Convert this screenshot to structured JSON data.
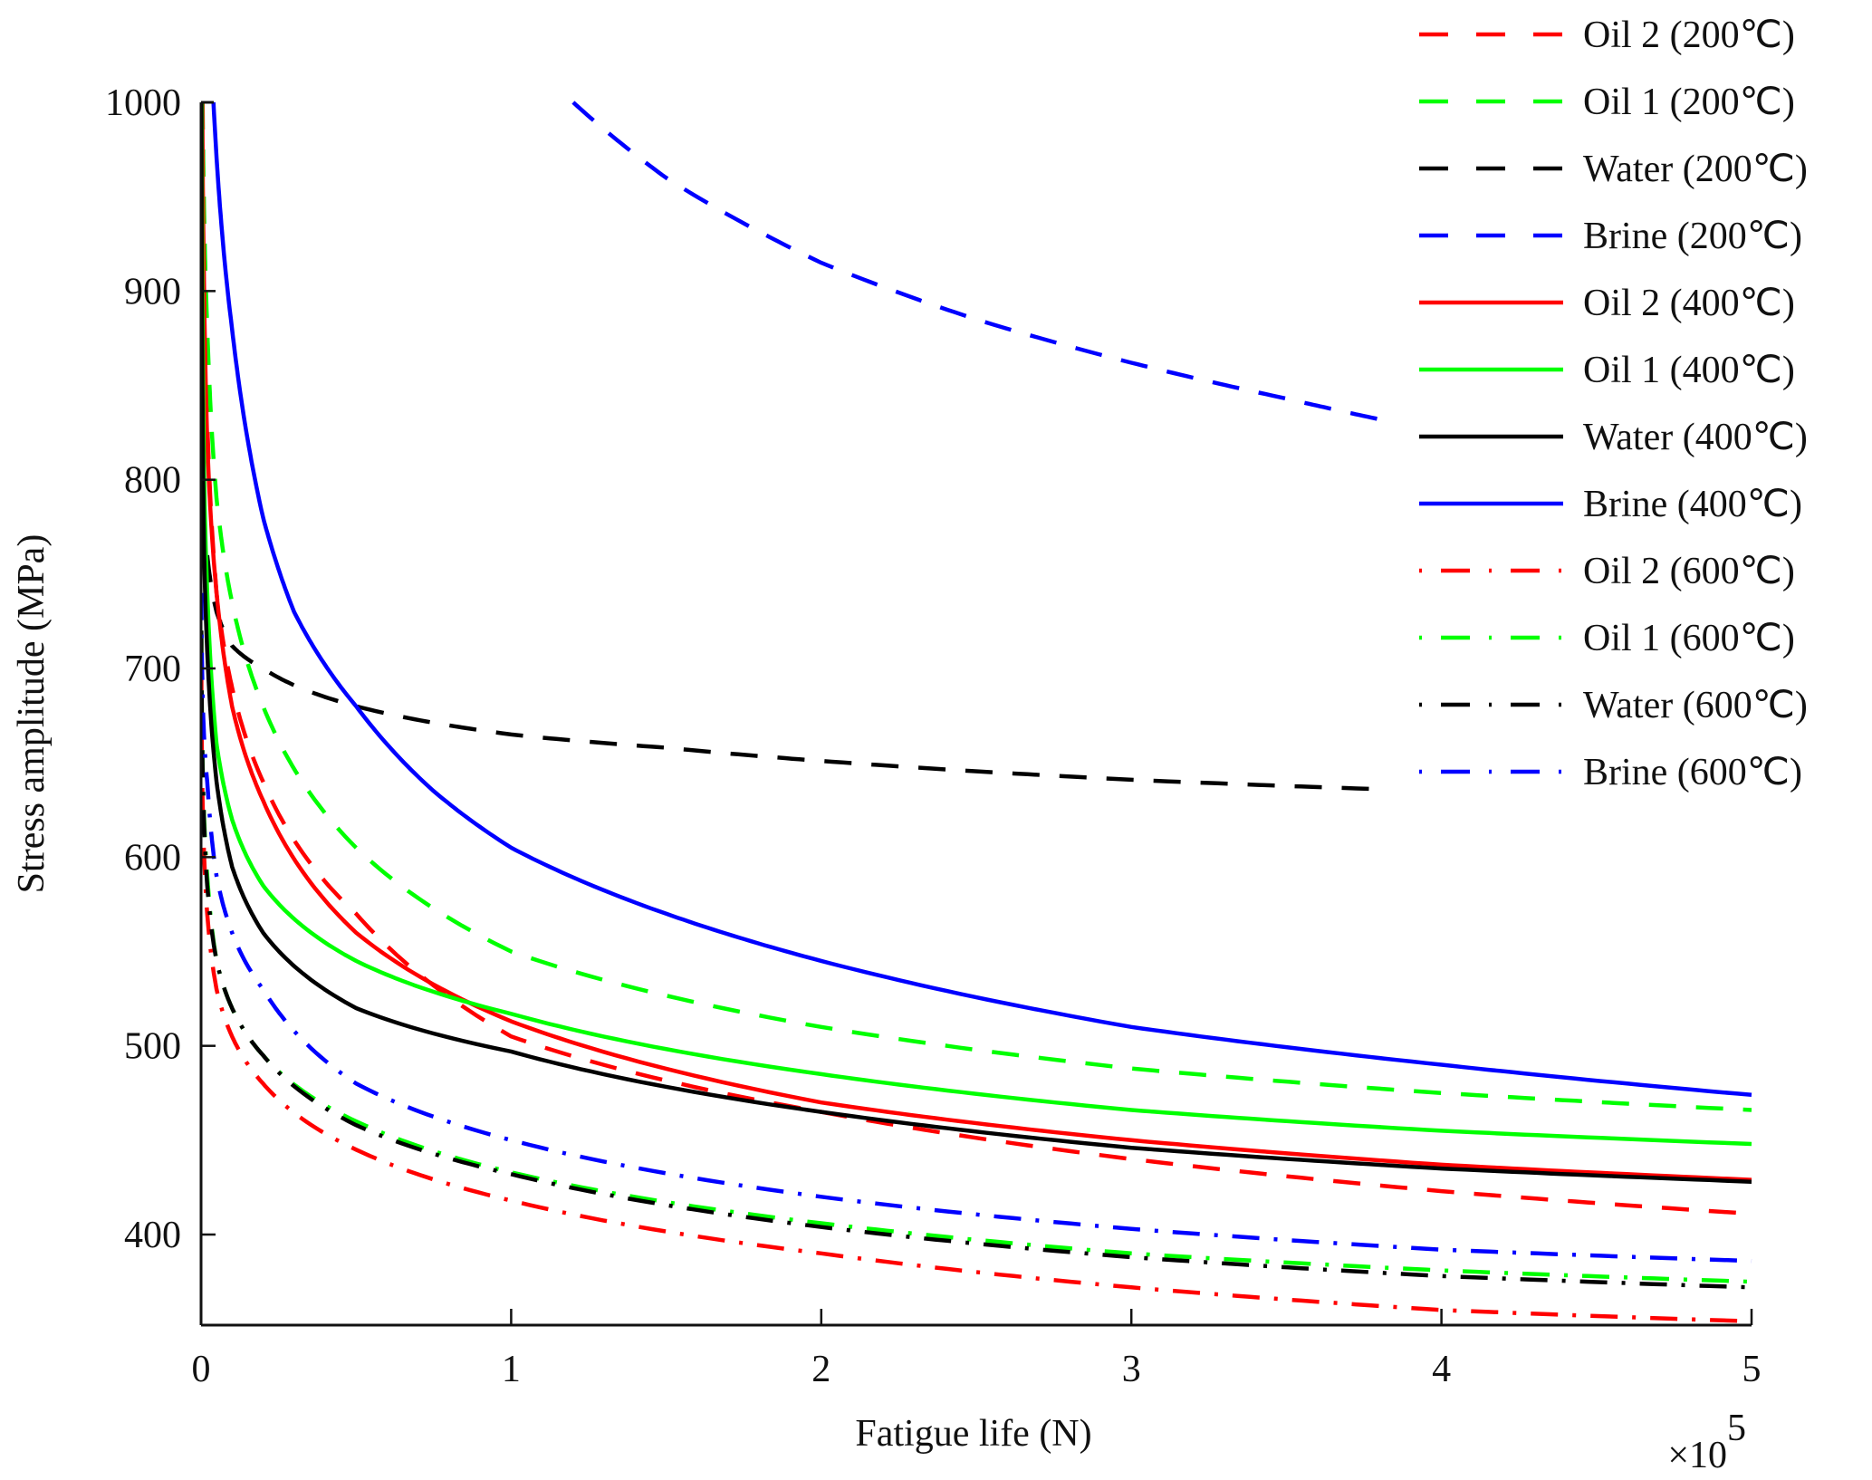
{
  "chart_data": {
    "type": "line",
    "title": "",
    "xlabel": "Fatigue life (N)",
    "ylabel": "Stress amplitude (MPa)",
    "x_multiplier_label": "×10",
    "x_multiplier_exponent": "5",
    "xlim": [
      0,
      5
    ],
    "ylim": [
      352,
      1000
    ],
    "x_ticks": [
      "0",
      "1",
      "2",
      "3",
      "4",
      "5"
    ],
    "x_tick_values": [
      0,
      1,
      2,
      3,
      4,
      5
    ],
    "y_ticks": [
      "400",
      "500",
      "600",
      "700",
      "800",
      "900",
      "1000"
    ],
    "y_tick_values": [
      400,
      500,
      600,
      700,
      800,
      900,
      1000
    ],
    "grid": false,
    "legend_position": "top-right",
    "x_units_note": "x values in units of 10^5 cycles",
    "series": [
      {
        "name": "Oil 2 (200",
        "unit": "℃",
        "color": "#ff0000",
        "style": "dashed",
        "x": [
          0.003,
          0.02,
          0.05,
          0.1,
          0.2,
          0.5,
          1,
          2,
          3,
          4,
          5
        ],
        "y": [
          1000,
          830,
          740,
          690,
          640,
          570,
          505,
          465,
          440,
          423,
          411
        ]
      },
      {
        "name": "Oil 1 (200",
        "unit": "℃",
        "color": "#00ff00",
        "style": "dashed",
        "x": [
          0.005,
          0.02,
          0.05,
          0.1,
          0.2,
          0.5,
          1,
          2,
          3,
          4,
          5
        ],
        "y": [
          1000,
          880,
          790,
          735,
          680,
          605,
          550,
          510,
          488,
          475,
          466
        ]
      },
      {
        "name": "Water (200",
        "unit": "℃",
        "color": "#000000",
        "style": "dashed",
        "x": [
          0.02,
          0.05,
          0.1,
          0.2,
          0.5,
          1,
          1.5,
          2,
          3,
          3.8
        ],
        "y": [
          760,
          730,
          712,
          700,
          680,
          665,
          658,
          651,
          641,
          636
        ]
      },
      {
        "name": "Brine (200",
        "unit": "℃",
        "color": "#0000ff",
        "style": "dashed",
        "x": [
          1.2,
          1.5,
          2.0,
          2.5,
          3.0,
          3.5,
          3.8
        ],
        "y": [
          1000,
          960,
          915,
          885,
          862,
          843,
          832
        ]
      },
      {
        "name": "Oil 2 (400",
        "unit": "℃",
        "color": "#ff0000",
        "style": "solid",
        "x": [
          0.004,
          0.02,
          0.05,
          0.1,
          0.2,
          0.5,
          1,
          2,
          3,
          4,
          5
        ],
        "y": [
          1000,
          820,
          740,
          680,
          630,
          560,
          513,
          470,
          450,
          437,
          429
        ]
      },
      {
        "name": "Oil 1 (400",
        "unit": "℃",
        "color": "#00ff00",
        "style": "solid",
        "x": [
          0.002,
          0.01,
          0.05,
          0.1,
          0.2,
          0.5,
          1,
          2,
          3,
          4,
          5
        ],
        "y": [
          1000,
          800,
          660,
          620,
          585,
          545,
          517,
          485,
          466,
          455,
          448
        ]
      },
      {
        "name": "Water (400",
        "unit": "℃",
        "color": "#000000",
        "style": "solid",
        "x": [
          0.001,
          0.01,
          0.05,
          0.1,
          0.2,
          0.5,
          1,
          2,
          3,
          4,
          5
        ],
        "y": [
          1000,
          760,
          640,
          595,
          560,
          520,
          497,
          465,
          446,
          435,
          428
        ]
      },
      {
        "name": "Brine (400",
        "unit": "℃",
        "color": "#0000ff",
        "style": "solid",
        "x": [
          0.04,
          0.1,
          0.2,
          0.3,
          0.5,
          0.75,
          1,
          1.5,
          2,
          3,
          4,
          5
        ],
        "y": [
          1000,
          880,
          780,
          730,
          680,
          635,
          605,
          570,
          545,
          510,
          490,
          474
        ]
      },
      {
        "name": "Oil 2 (600",
        "unit": "℃",
        "color": "#ff0000",
        "style": "dashdot",
        "x": [
          0.001,
          0.02,
          0.05,
          0.1,
          0.2,
          0.5,
          1,
          2,
          3,
          4,
          5
        ],
        "y": [
          700,
          570,
          530,
          505,
          480,
          445,
          418,
          390,
          372,
          360,
          354
        ]
      },
      {
        "name": "Oil 1 (600",
        "unit": "℃",
        "color": "#00ff00",
        "style": "dashdot",
        "x": [
          0.001,
          0.02,
          0.05,
          0.1,
          0.2,
          0.5,
          1,
          2,
          3,
          4,
          5
        ],
        "y": [
          720,
          590,
          545,
          520,
          495,
          460,
          433,
          406,
          390,
          381,
          375
        ]
      },
      {
        "name": "Water (600",
        "unit": "℃",
        "color": "#000000",
        "style": "dashdot",
        "x": [
          0.001,
          0.02,
          0.05,
          0.1,
          0.2,
          0.5,
          1,
          2,
          3,
          4,
          5
        ],
        "y": [
          720,
          585,
          545,
          520,
          495,
          458,
          432,
          404,
          388,
          378,
          372
        ]
      },
      {
        "name": "Brine (600",
        "unit": "℃",
        "color": "#0000ff",
        "style": "dashdot",
        "x": [
          0.001,
          0.02,
          0.05,
          0.1,
          0.2,
          0.5,
          1,
          2,
          3,
          4,
          5
        ],
        "y": [
          740,
          640,
          590,
          560,
          530,
          480,
          450,
          420,
          403,
          392,
          386
        ]
      }
    ]
  }
}
